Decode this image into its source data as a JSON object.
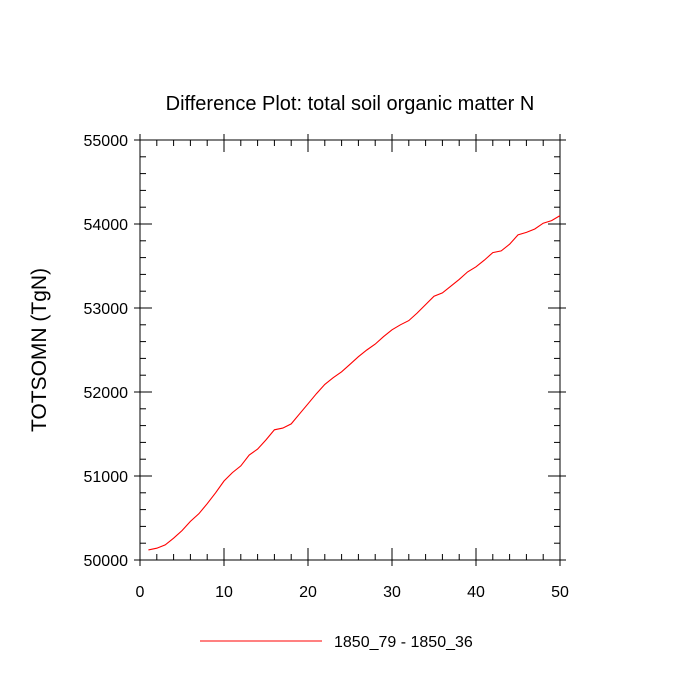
{
  "chart_data": {
    "type": "line",
    "title": "Difference Plot: total soil organic matter N",
    "xlabel": "",
    "ylabel": "TOTSOMN  (TgN)",
    "xlim": [
      0,
      50
    ],
    "ylim": [
      50000,
      55000
    ],
    "x_ticks": [
      0,
      10,
      20,
      30,
      40,
      50
    ],
    "y_ticks": [
      50000,
      51000,
      52000,
      53000,
      54000,
      55000
    ],
    "x_minor_step": 2,
    "y_minor_step": 200,
    "grid": false,
    "legend_position": "bottom",
    "series": [
      {
        "name": "1850_79 - 1850_36",
        "color": "#ff0000",
        "x": [
          1,
          2,
          3,
          4,
          5,
          6,
          7,
          8,
          9,
          10,
          11,
          12,
          13,
          14,
          15,
          16,
          17,
          18,
          19,
          20,
          21,
          22,
          23,
          24,
          25,
          26,
          27,
          28,
          29,
          30,
          31,
          32,
          33,
          34,
          35,
          36,
          37,
          38,
          39,
          40,
          41,
          42,
          43,
          44,
          45,
          46,
          47,
          48,
          49,
          50
        ],
        "values": [
          50120,
          50140,
          50180,
          50260,
          50350,
          50460,
          50550,
          50670,
          50800,
          50940,
          51040,
          51120,
          51250,
          51320,
          51430,
          51550,
          51570,
          51620,
          51740,
          51860,
          51980,
          52090,
          52170,
          52240,
          52330,
          52420,
          52500,
          52570,
          52660,
          52740,
          52800,
          52850,
          52940,
          53040,
          53140,
          53180,
          53260,
          53340,
          53430,
          53490,
          53570,
          53660,
          53680,
          53760,
          53870,
          53900,
          53940,
          54010,
          54040,
          54100
        ]
      }
    ]
  }
}
